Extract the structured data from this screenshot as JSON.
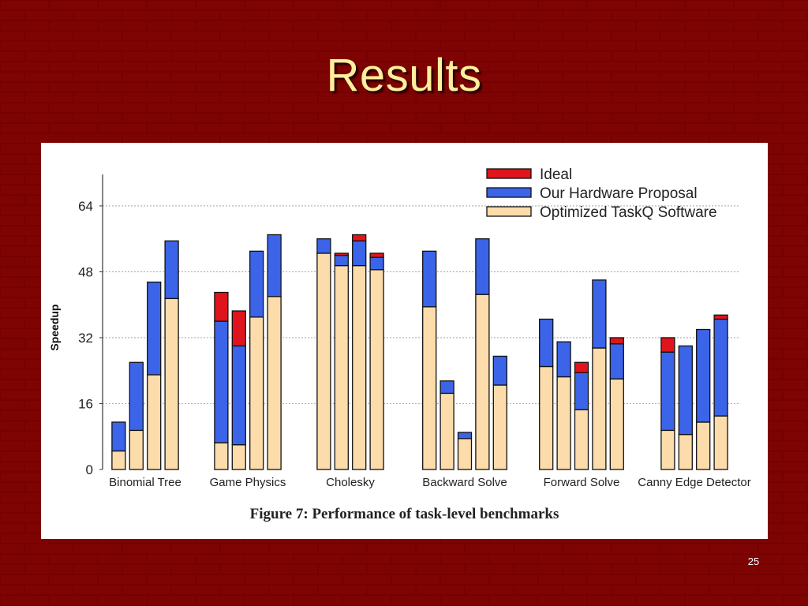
{
  "slide": {
    "title": "Results",
    "page_number": "25",
    "figure_caption": "Figure 7: Performance of task-level benchmarks"
  },
  "colors": {
    "background": "#7a0000",
    "title": "#ffef9e",
    "ideal": "#e0141c",
    "hardware": "#3b64e8",
    "software": "#fcdcaa"
  },
  "chart_data": {
    "type": "bar",
    "stacked": true,
    "ylabel": "Speedup",
    "xlabel": "",
    "ylim": [
      0,
      72
    ],
    "yticks": [
      0,
      16,
      32,
      48,
      64
    ],
    "grid": true,
    "legend_position": "top-right",
    "legend": [
      "Ideal",
      "Our Hardware Proposal",
      "Optimized TaskQ Software"
    ],
    "groups": [
      {
        "name": "Binomial Tree",
        "bars": [
          {
            "software": 4.5,
            "hardware": 7,
            "ideal": 0
          },
          {
            "software": 9.5,
            "hardware": 16.5,
            "ideal": 0
          },
          {
            "software": 23,
            "hardware": 22.5,
            "ideal": 0
          },
          {
            "software": 41.5,
            "hardware": 14,
            "ideal": 0
          }
        ]
      },
      {
        "name": "Game Physics",
        "bars": [
          {
            "software": 6.5,
            "hardware": 29.5,
            "ideal": 7
          },
          {
            "software": 6,
            "hardware": 24,
            "ideal": 8.5
          },
          {
            "software": 37,
            "hardware": 16,
            "ideal": 0
          },
          {
            "software": 42,
            "hardware": 15,
            "ideal": 0
          }
        ]
      },
      {
        "name": "Cholesky",
        "bars": [
          {
            "software": 52.5,
            "hardware": 3.5,
            "ideal": 0
          },
          {
            "software": 49.5,
            "hardware": 2.5,
            "ideal": 0.5
          },
          {
            "software": 49.5,
            "hardware": 6,
            "ideal": 1.5
          },
          {
            "software": 48.5,
            "hardware": 3,
            "ideal": 1
          }
        ]
      },
      {
        "name": "Backward Solve",
        "bars": [
          {
            "software": 39.5,
            "hardware": 13.5,
            "ideal": 0
          },
          {
            "software": 18.5,
            "hardware": 3,
            "ideal": 0
          },
          {
            "software": 7.5,
            "hardware": 1.5,
            "ideal": 0
          },
          {
            "software": 42.5,
            "hardware": 13.5,
            "ideal": 0
          },
          {
            "software": 20.5,
            "hardware": 7,
            "ideal": 0
          }
        ]
      },
      {
        "name": "Forward Solve",
        "bars": [
          {
            "software": 25,
            "hardware": 11.5,
            "ideal": 0
          },
          {
            "software": 22.5,
            "hardware": 8.5,
            "ideal": 0
          },
          {
            "software": 14.5,
            "hardware": 9,
            "ideal": 2.5
          },
          {
            "software": 29.5,
            "hardware": 16.5,
            "ideal": 0
          },
          {
            "software": 22,
            "hardware": 8.5,
            "ideal": 1.5
          }
        ]
      },
      {
        "name": "Canny Edge Detector",
        "bars": [
          {
            "software": 9.5,
            "hardware": 19,
            "ideal": 3.5
          },
          {
            "software": 8.5,
            "hardware": 21.5,
            "ideal": 0
          },
          {
            "software": 11.5,
            "hardware": 22.5,
            "ideal": 0
          },
          {
            "software": 13,
            "hardware": 23.5,
            "ideal": 1
          }
        ]
      }
    ]
  }
}
